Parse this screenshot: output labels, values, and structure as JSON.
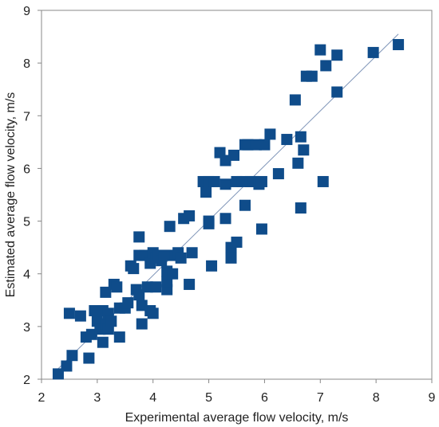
{
  "chart_data": {
    "type": "scatter",
    "title": "",
    "xlabel": "Experimental average flow velocity, m/s",
    "ylabel": "Estimated average flow velocity, m/s",
    "xlim": [
      2,
      9
    ],
    "ylim": [
      2,
      9
    ],
    "xticks": [
      "2",
      "3",
      "4",
      "5",
      "6",
      "7",
      "8",
      "9"
    ],
    "yticks": [
      "2",
      "3",
      "4",
      "5",
      "6",
      "7",
      "8",
      "9"
    ],
    "grid": false,
    "legend": "none",
    "marker_color": "#0F4C8A",
    "line_color": "#7F95B8",
    "reference_line": {
      "x": [
        2.3,
        8.4
      ],
      "y": [
        2.2,
        8.55
      ]
    },
    "points": [
      [
        2.3,
        2.1
      ],
      [
        2.45,
        2.25
      ],
      [
        2.55,
        2.45
      ],
      [
        2.85,
        2.4
      ],
      [
        2.5,
        3.25
      ],
      [
        2.7,
        3.2
      ],
      [
        2.8,
        2.8
      ],
      [
        2.9,
        2.85
      ],
      [
        2.95,
        3.3
      ],
      [
        3.0,
        3.1
      ],
      [
        3.05,
        2.95
      ],
      [
        3.1,
        2.7
      ],
      [
        3.1,
        3.3
      ],
      [
        3.15,
        3.05
      ],
      [
        3.2,
        2.95
      ],
      [
        3.15,
        3.65
      ],
      [
        3.2,
        3.25
      ],
      [
        3.25,
        3.1
      ],
      [
        3.3,
        3.8
      ],
      [
        3.35,
        3.75
      ],
      [
        3.4,
        3.35
      ],
      [
        3.4,
        2.8
      ],
      [
        3.5,
        3.35
      ],
      [
        3.55,
        3.45
      ],
      [
        3.6,
        4.15
      ],
      [
        3.65,
        4.1
      ],
      [
        3.7,
        3.7
      ],
      [
        3.75,
        3.6
      ],
      [
        3.75,
        4.7
      ],
      [
        3.8,
        3.05
      ],
      [
        3.8,
        3.4
      ],
      [
        3.75,
        4.35
      ],
      [
        3.85,
        4.35
      ],
      [
        3.9,
        3.75
      ],
      [
        3.95,
        3.3
      ],
      [
        3.95,
        4.2
      ],
      [
        4.0,
        3.25
      ],
      [
        4.0,
        4.4
      ],
      [
        4.05,
        4.3
      ],
      [
        4.05,
        3.75
      ],
      [
        4.1,
        4.35
      ],
      [
        4.15,
        4.25
      ],
      [
        4.2,
        4.35
      ],
      [
        4.25,
        4.05
      ],
      [
        4.25,
        3.7
      ],
      [
        4.25,
        3.85
      ],
      [
        4.3,
        4.35
      ],
      [
        4.3,
        4.9
      ],
      [
        4.35,
        4.0
      ],
      [
        4.4,
        4.35
      ],
      [
        4.45,
        4.4
      ],
      [
        4.5,
        4.3
      ],
      [
        4.55,
        5.05
      ],
      [
        4.65,
        5.1
      ],
      [
        4.65,
        3.8
      ],
      [
        4.7,
        4.4
      ],
      [
        4.9,
        5.75
      ],
      [
        4.95,
        5.55
      ],
      [
        5.0,
        5.75
      ],
      [
        5.0,
        5.0
      ],
      [
        5.0,
        4.95
      ],
      [
        5.05,
        4.15
      ],
      [
        5.1,
        5.75
      ],
      [
        5.2,
        6.3
      ],
      [
        5.3,
        6.15
      ],
      [
        5.3,
        5.05
      ],
      [
        5.3,
        5.7
      ],
      [
        5.4,
        4.3
      ],
      [
        5.4,
        4.5
      ],
      [
        5.45,
        6.25
      ],
      [
        5.5,
        5.75
      ],
      [
        5.5,
        4.6
      ],
      [
        5.6,
        5.75
      ],
      [
        5.65,
        6.45
      ],
      [
        5.65,
        5.3
      ],
      [
        5.7,
        6.45
      ],
      [
        5.75,
        5.75
      ],
      [
        5.8,
        5.75
      ],
      [
        5.85,
        6.45
      ],
      [
        5.9,
        5.7
      ],
      [
        5.95,
        4.85
      ],
      [
        5.95,
        5.75
      ],
      [
        6.0,
        6.45
      ],
      [
        6.1,
        6.65
      ],
      [
        6.25,
        5.9
      ],
      [
        6.4,
        6.55
      ],
      [
        6.55,
        7.3
      ],
      [
        6.6,
        6.1
      ],
      [
        6.65,
        6.6
      ],
      [
        6.65,
        5.25
      ],
      [
        6.7,
        6.35
      ],
      [
        6.75,
        7.75
      ],
      [
        6.85,
        7.75
      ],
      [
        7.0,
        8.25
      ],
      [
        7.05,
        5.75
      ],
      [
        7.1,
        7.95
      ],
      [
        7.3,
        8.15
      ],
      [
        7.3,
        7.45
      ],
      [
        7.95,
        8.2
      ],
      [
        8.4,
        8.35
      ]
    ]
  }
}
